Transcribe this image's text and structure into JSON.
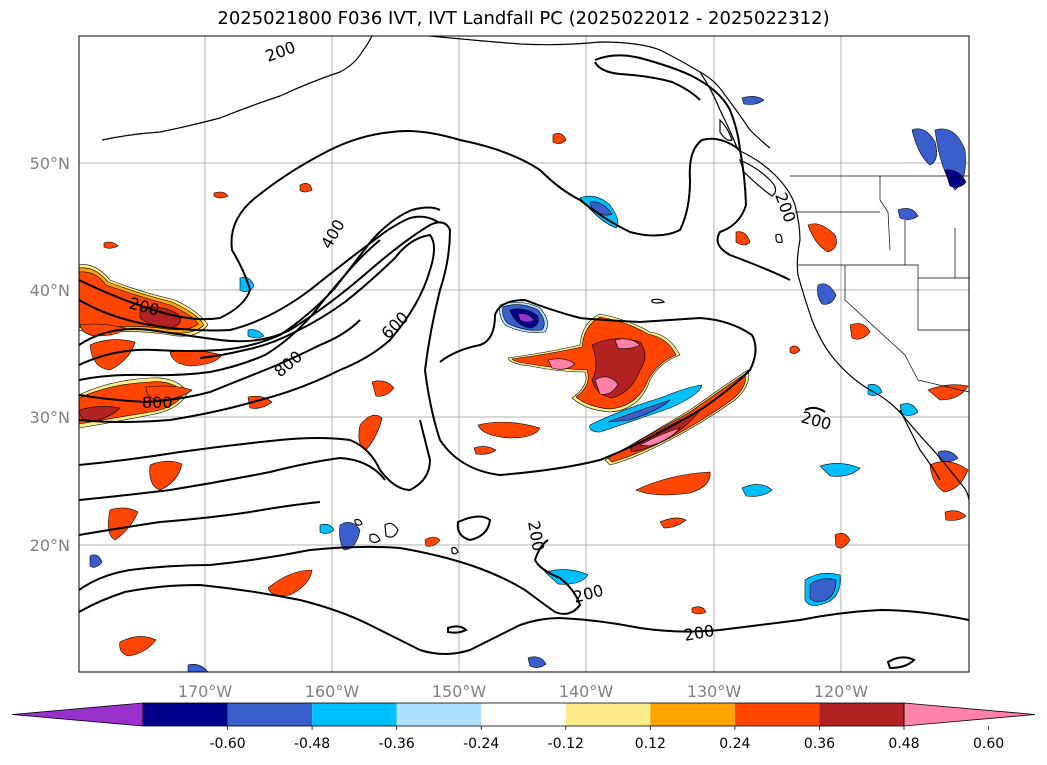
{
  "title": "2025021800 F036 IVT, IVT Landfall PC (2025022012 - 2025022312)",
  "map": {
    "lat_labels": [
      "50°N",
      "40°N",
      "30°N",
      "20°N"
    ],
    "lon_labels": [
      "170°W",
      "160°W",
      "150°W",
      "140°W",
      "130°W",
      "120°W"
    ],
    "contour_labels": [
      "200",
      "200",
      "400",
      "600",
      "800",
      "800",
      "200",
      "200",
      "200",
      "200",
      "200"
    ],
    "contour_color": "#000000",
    "grid": true
  },
  "colorbar": {
    "ticks": [
      "-0.60",
      "-0.48",
      "-0.36",
      "-0.24",
      "-0.12",
      "0.12",
      "0.24",
      "0.36",
      "0.48",
      "0.60"
    ],
    "colors": [
      "#9932CC",
      "#00008B",
      "#3A5FCD",
      "#00BFFF",
      "#B0E2FF",
      "#FFFFFF",
      "#FFEC8B",
      "#FFA500",
      "#FF4500",
      "#B22222",
      "#FF82AB"
    ]
  },
  "legend": {
    "positive_colors": [
      "#FFEC8B",
      "#FFA500",
      "#FF4500",
      "#B22222",
      "#FF82AB"
    ],
    "negative_colors": [
      "#B0E2FF",
      "#00BFFF",
      "#3A5FCD",
      "#00008B"
    ]
  }
}
